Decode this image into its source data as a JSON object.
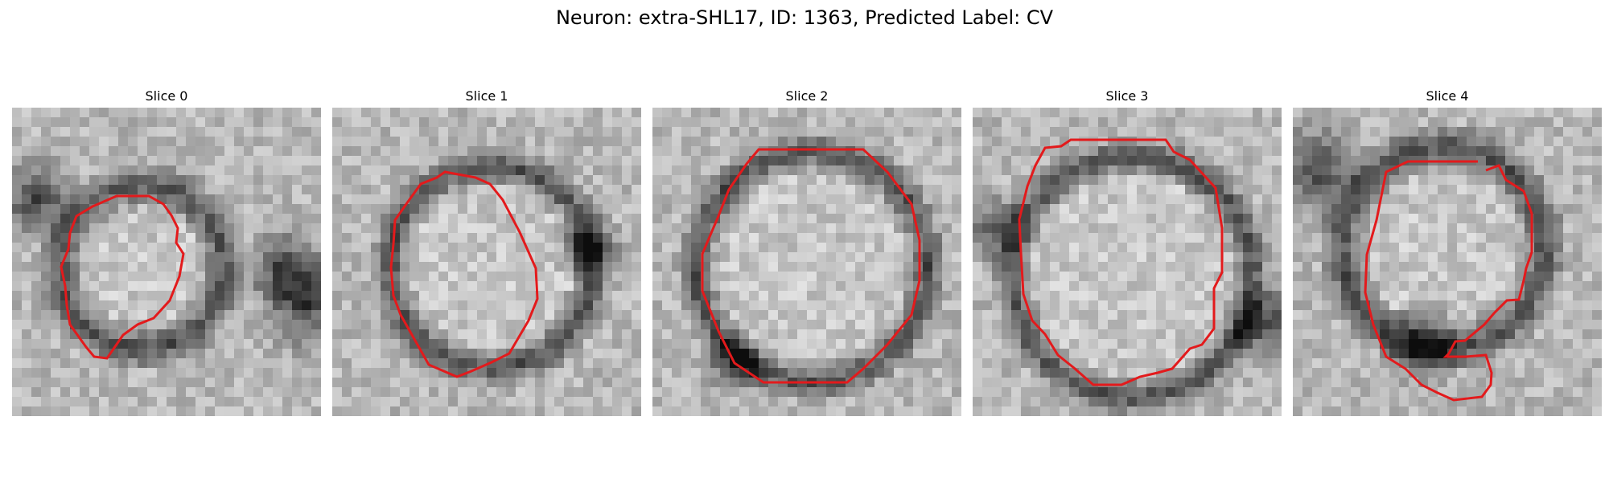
{
  "figure": {
    "title": "Neuron: extra-SHL17, ID: 1363, Predicted Label: CV",
    "contour_color": "#e31a1c"
  },
  "panels": [
    {
      "title": "Slice 0",
      "pattern": "dark-ring-small"
    },
    {
      "title": "Slice 1",
      "pattern": "ring-medium"
    },
    {
      "title": "Slice 2",
      "pattern": "ring-large"
    },
    {
      "title": "Slice 3",
      "pattern": "ring-large-right"
    },
    {
      "title": "Slice 4",
      "pattern": "open-ring"
    }
  ]
}
